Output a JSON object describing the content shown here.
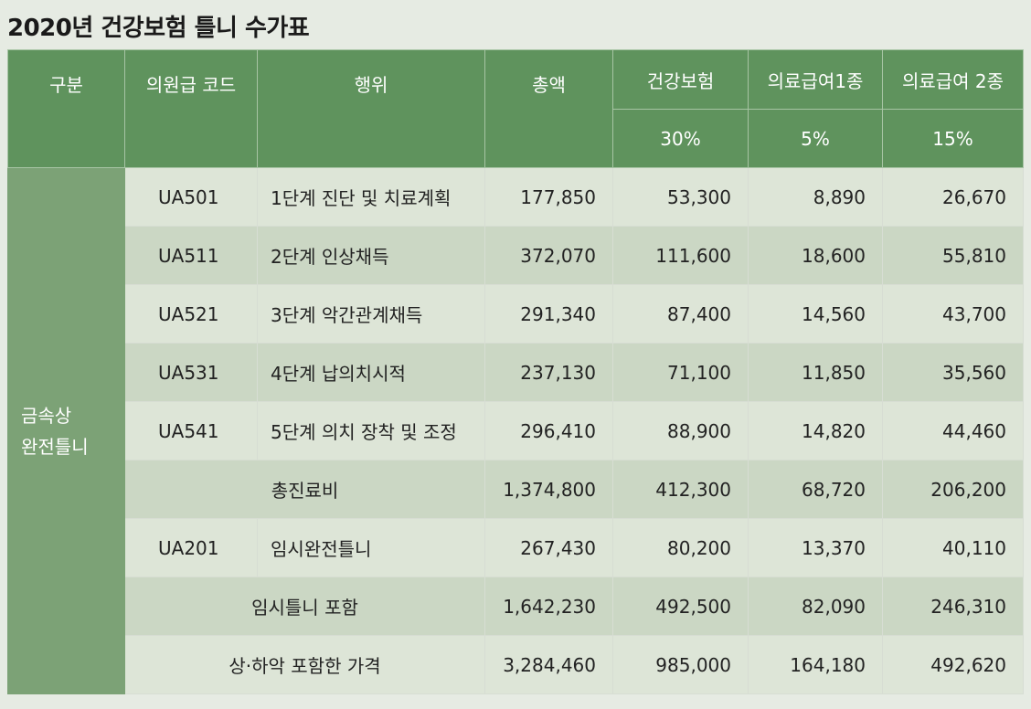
{
  "title": "2020년 건강보험 틀니 수가표",
  "headers": {
    "category": "구분",
    "code": "의원급 코드",
    "action": "행위",
    "total": "총액",
    "health": "건강보험",
    "aid1": "의료급여1종",
    "aid2": "의료급여 2종",
    "health_rate": "30%",
    "aid1_rate": "5%",
    "aid2_rate": "15%"
  },
  "category": {
    "line1": "금속상",
    "line2": "완전틀니"
  },
  "rows": [
    {
      "code": "UA501",
      "action": "1단계 진단 및 치료계획",
      "total": "177,850",
      "health": "53,300",
      "aid1": "8,890",
      "aid2": "26,670"
    },
    {
      "code": "UA511",
      "action": "2단계 인상채득",
      "total": "372,070",
      "health": "111,600",
      "aid1": "18,600",
      "aid2": "55,810"
    },
    {
      "code": "UA521",
      "action": "3단계 악간관계채득",
      "total": "291,340",
      "health": "87,400",
      "aid1": "14,560",
      "aid2": "43,700"
    },
    {
      "code": "UA531",
      "action": "4단계 납의치시적",
      "total": "237,130",
      "health": "71,100",
      "aid1": "11,850",
      "aid2": "35,560"
    },
    {
      "code": "UA541",
      "action": "5단계 의치 장착 및 조정",
      "total": "296,410",
      "health": "88,900",
      "aid1": "14,820",
      "aid2": "44,460"
    },
    {
      "label": "총진료비",
      "total": "1,374,800",
      "health": "412,300",
      "aid1": "68,720",
      "aid2": "206,200"
    },
    {
      "code": "UA201",
      "action": "임시완전틀니",
      "total": "267,430",
      "health": "80,200",
      "aid1": "13,370",
      "aid2": "40,110"
    },
    {
      "label": "임시틀니 포함",
      "total": "1,642,230",
      "health": "492,500",
      "aid1": "82,090",
      "aid2": "246,310"
    },
    {
      "label": "상·하악 포함한 가격",
      "total": "3,284,460",
      "health": "985,000",
      "aid1": "164,180",
      "aid2": "492,620"
    }
  ]
}
